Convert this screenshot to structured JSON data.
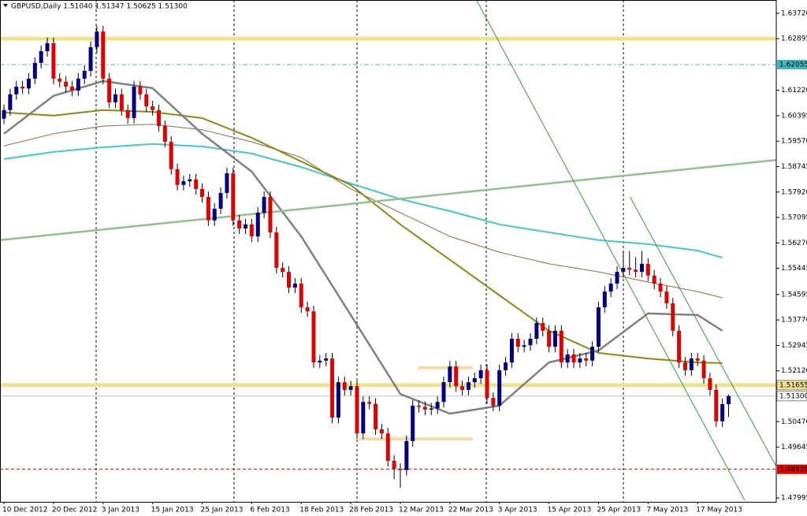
{
  "chart_data": {
    "type": "candlestick",
    "title": "GBPUSD,Daily  1.51040 1.51347 1.50625 1.51300",
    "categories": [
      "10 Dec 2012",
      null,
      null,
      null,
      null,
      null,
      null,
      null,
      "20 Dec 2012",
      null,
      null,
      null,
      null,
      null,
      null,
      null,
      "3 Jan 2013",
      null,
      null,
      null,
      null,
      null,
      null,
      null,
      "15 Jan 2013",
      null,
      null,
      null,
      null,
      null,
      null,
      null,
      "25 Jan 2013",
      null,
      null,
      null,
      null,
      null,
      null,
      null,
      "6 Feb 2013",
      null,
      null,
      null,
      null,
      null,
      null,
      null,
      "18 Feb 2013",
      null,
      null,
      null,
      null,
      null,
      null,
      null,
      "28 Feb 2013",
      null,
      null,
      null,
      null,
      null,
      null,
      null,
      "12 Mar 2013",
      null,
      null,
      null,
      null,
      null,
      null,
      null,
      "22 Mar 2013",
      null,
      null,
      null,
      null,
      null,
      null,
      null,
      "3 Apr 2013",
      null,
      null,
      null,
      null,
      null,
      null,
      null,
      "15 Apr 2013",
      null,
      null,
      null,
      null,
      null,
      null,
      null,
      "25 Apr 2013",
      null,
      null,
      null,
      null,
      null,
      null,
      null,
      "7 May 2013",
      null,
      null,
      null,
      null,
      null,
      null,
      null,
      "17 May 2013",
      null,
      null,
      null,
      null,
      null
    ],
    "open": [
      1.603,
      1.6058,
      1.6109,
      1.6134,
      1.6128,
      1.616,
      1.6211,
      1.6249,
      1.6275,
      1.616,
      1.615,
      1.6134,
      1.6121,
      1.616,
      1.6185,
      1.6262,
      1.6313,
      1.616,
      1.6083,
      1.6109,
      1.6058,
      1.6032,
      1.6134,
      1.6109,
      1.607,
      1.6058,
      1.6006,
      1.5955,
      1.5866,
      1.5815,
      1.5827,
      1.5833,
      1.5802,
      1.5776,
      1.57,
      1.5738,
      1.5789,
      1.5853,
      1.57,
      1.5674,
      1.5687,
      1.5648,
      1.5725,
      1.5776,
      1.5661,
      1.5546,
      1.5533,
      1.5482,
      1.5495,
      1.5418,
      1.5405,
      1.5239,
      1.5245,
      1.5252,
      1.506,
      1.5175,
      1.515,
      1.5162,
      1.5009,
      1.5111,
      1.5105,
      1.5022,
      1.5009,
      1.492,
      1.4894,
      1.489,
      1.4984,
      1.5099,
      1.5095,
      1.5086,
      1.509,
      1.5111,
      1.5175,
      1.5226,
      1.5162,
      1.515,
      1.5175,
      1.5188,
      1.5214,
      1.5124,
      1.5099,
      1.5214,
      1.5239,
      1.5316,
      1.529,
      1.5295,
      1.5316,
      1.5367,
      1.5342,
      1.529,
      1.5342,
      1.5239,
      1.5265,
      1.5239,
      1.5252,
      1.5245,
      1.529,
      1.5418,
      1.5469,
      1.5495,
      1.5533,
      1.5546,
      1.554,
      1.5533,
      1.5559,
      1.5521,
      1.5495,
      1.5469,
      1.5431,
      1.5342,
      1.5239,
      1.5214,
      1.5252,
      1.5245,
      1.5188,
      1.515,
      1.5048,
      1.5104
    ],
    "high": [
      1.6076,
      1.6127,
      1.6152,
      1.6152,
      1.6178,
      1.6229,
      1.6267,
      1.6293,
      1.6293,
      1.6178,
      1.6168,
      1.6152,
      1.6178,
      1.6203,
      1.628,
      1.6331,
      1.6331,
      1.6178,
      1.6127,
      1.6127,
      1.6076,
      1.6152,
      1.6152,
      1.6127,
      1.6088,
      1.6076,
      1.6024,
      1.5973,
      1.5884,
      1.5845,
      1.5851,
      1.5851,
      1.582,
      1.5794,
      1.5756,
      1.5807,
      1.5871,
      1.5871,
      1.5718,
      1.5705,
      1.5705,
      1.5743,
      1.5794,
      1.5794,
      1.5679,
      1.5564,
      1.5551,
      1.5513,
      1.5513,
      1.5436,
      1.5423,
      1.5263,
      1.527,
      1.527,
      1.5193,
      1.5193,
      1.518,
      1.518,
      1.5129,
      1.5129,
      1.5123,
      1.504,
      1.5027,
      1.4938,
      1.4912,
      1.5002,
      1.5117,
      1.5117,
      1.5113,
      1.5108,
      1.5129,
      1.5193,
      1.5244,
      1.5244,
      1.518,
      1.5193,
      1.5206,
      1.5232,
      1.5232,
      1.5142,
      1.5232,
      1.5257,
      1.5334,
      1.5334,
      1.5313,
      1.5334,
      1.5385,
      1.5385,
      1.536,
      1.536,
      1.536,
      1.5283,
      1.5283,
      1.527,
      1.527,
      1.5308,
      1.5436,
      1.5487,
      1.5513,
      1.5551,
      1.56,
      1.56,
      1.558,
      1.56,
      1.5577,
      1.5539,
      1.5513,
      1.5487,
      1.5449,
      1.536,
      1.5257,
      1.527,
      1.527,
      1.5263,
      1.5206,
      1.5168,
      1.5122,
      1.51347
    ],
    "low": [
      1.6012,
      1.604,
      1.6091,
      1.611,
      1.611,
      1.6142,
      1.6193,
      1.6231,
      1.6142,
      1.6132,
      1.6116,
      1.6103,
      1.6103,
      1.6142,
      1.6167,
      1.6244,
      1.6142,
      1.6065,
      1.6065,
      1.604,
      1.6014,
      1.6014,
      1.6091,
      1.6052,
      1.604,
      1.5988,
      1.5937,
      1.5848,
      1.5797,
      1.5797,
      1.5809,
      1.5784,
      1.5758,
      1.5682,
      1.5682,
      1.572,
      1.5771,
      1.5682,
      1.5656,
      1.5656,
      1.563,
      1.563,
      1.5707,
      1.5643,
      1.5528,
      1.5515,
      1.5464,
      1.5464,
      1.54,
      1.5387,
      1.5221,
      1.5221,
      1.5227,
      1.5042,
      1.5042,
      1.5132,
      1.5132,
      1.4991,
      1.4991,
      1.5087,
      1.5004,
      1.4991,
      1.4902,
      1.486,
      1.4832,
      1.4872,
      1.4966,
      1.5077,
      1.5068,
      1.5068,
      1.5072,
      1.5093,
      1.5157,
      1.5144,
      1.5132,
      1.5132,
      1.5157,
      1.517,
      1.5106,
      1.5081,
      1.5081,
      1.5196,
      1.5221,
      1.5272,
      1.5272,
      1.5277,
      1.5298,
      1.5324,
      1.5272,
      1.5272,
      1.5221,
      1.5221,
      1.5221,
      1.5221,
      1.5227,
      1.5227,
      1.5272,
      1.54,
      1.5451,
      1.5477,
      1.5515,
      1.5522,
      1.5515,
      1.5515,
      1.5503,
      1.5477,
      1.5451,
      1.5413,
      1.5324,
      1.5221,
      1.5196,
      1.5196,
      1.5227,
      1.517,
      1.5132,
      1.503,
      1.503,
      1.50625
    ],
    "close": [
      1.6058,
      1.6109,
      1.6134,
      1.6128,
      1.616,
      1.6211,
      1.6249,
      1.6275,
      1.616,
      1.615,
      1.6134,
      1.6121,
      1.616,
      1.6185,
      1.6262,
      1.6313,
      1.616,
      1.6083,
      1.6109,
      1.6058,
      1.6032,
      1.6134,
      1.6109,
      1.607,
      1.6058,
      1.6006,
      1.5955,
      1.5866,
      1.5815,
      1.5827,
      1.5833,
      1.5802,
      1.5776,
      1.57,
      1.5738,
      1.5789,
      1.5853,
      1.57,
      1.5674,
      1.5687,
      1.5648,
      1.5725,
      1.5776,
      1.5661,
      1.5546,
      1.5533,
      1.5482,
      1.5495,
      1.5418,
      1.5405,
      1.5239,
      1.5245,
      1.5252,
      1.506,
      1.5175,
      1.515,
      1.5162,
      1.5009,
      1.5111,
      1.5105,
      1.5022,
      1.5009,
      1.492,
      1.4894,
      1.489,
      1.4984,
      1.5099,
      1.5095,
      1.5086,
      1.509,
      1.5111,
      1.5175,
      1.5226,
      1.5162,
      1.515,
      1.5175,
      1.5188,
      1.5214,
      1.5124,
      1.5099,
      1.5214,
      1.5239,
      1.5316,
      1.529,
      1.5295,
      1.5316,
      1.5367,
      1.5342,
      1.529,
      1.5342,
      1.5239,
      1.5265,
      1.5239,
      1.5252,
      1.5245,
      1.529,
      1.5418,
      1.5469,
      1.5495,
      1.5533,
      1.5546,
      1.554,
      1.5533,
      1.5559,
      1.5521,
      1.5495,
      1.5469,
      1.5431,
      1.5342,
      1.5239,
      1.5214,
      1.5252,
      1.5245,
      1.5188,
      1.515,
      1.5048,
      1.5104,
      1.513
    ],
    "up_color": "#000080",
    "down_color": "#e00000",
    "xlim": [
      -0.64,
      124.7
    ],
    "ylim": [
      1.4787,
      1.6415
    ],
    "yticks": [
      {
        "value": 1.6372,
        "label": "1.63720"
      },
      {
        "value": 1.62895,
        "label": "1.62895"
      },
      {
        "value": 1.6122,
        "label": "1.61220"
      },
      {
        "value": 1.60395,
        "label": "1.60395"
      },
      {
        "value": 1.5957,
        "label": "1.59570"
      },
      {
        "value": 1.58745,
        "label": "1.58745"
      },
      {
        "value": 1.5792,
        "label": "1.57920"
      },
      {
        "value": 1.57095,
        "label": "1.57095"
      },
      {
        "value": 1.5627,
        "label": "1.56270"
      },
      {
        "value": 1.55445,
        "label": "1.55445"
      },
      {
        "value": 1.54595,
        "label": "1.54595"
      },
      {
        "value": 1.5377,
        "label": "1.53770"
      },
      {
        "value": 1.52945,
        "label": "1.52945"
      },
      {
        "value": 1.5212,
        "label": "1.52120"
      },
      {
        "value": 1.5047,
        "label": "1.50470"
      },
      {
        "value": 1.49645,
        "label": "1.49645"
      },
      {
        "value": 1.47995,
        "label": "1.47995"
      }
    ],
    "indicators": [
      {
        "color": "#40c8d0",
        "width": 2,
        "x": [
          0,
          8,
          16,
          24,
          32,
          40,
          48,
          56,
          64,
          72,
          80,
          88,
          96,
          104,
          112,
          116
        ],
        "values": [
          1.5899,
          1.5922,
          1.5937,
          1.5948,
          1.594,
          1.5917,
          1.5873,
          1.582,
          1.5769,
          1.573,
          1.5687,
          1.5661,
          1.5636,
          1.5623,
          1.5602,
          1.5579
        ]
      },
      {
        "color": "#8b6a4a",
        "width": 1,
        "x": [
          0,
          8,
          16,
          24,
          32,
          40,
          48,
          56,
          64,
          72,
          80,
          88,
          96,
          104,
          112,
          116
        ],
        "values": [
          1.5942,
          1.5981,
          1.6006,
          1.6012,
          1.5994,
          1.5955,
          1.5904,
          1.5802,
          1.5725,
          1.5648,
          1.5597,
          1.5559,
          1.5533,
          1.55,
          1.5469,
          1.5449
        ]
      },
      {
        "color": "#8a8a10",
        "width": 2,
        "x": [
          0,
          8,
          16,
          24,
          32,
          40,
          48,
          56,
          64,
          72,
          80,
          88,
          96,
          104,
          112,
          116
        ],
        "values": [
          1.605,
          1.604,
          1.6058,
          1.6052,
          1.6032,
          1.5968,
          1.5891,
          1.5815,
          1.5687,
          1.5572,
          1.5457,
          1.5342,
          1.527,
          1.5252,
          1.5239,
          1.5237
        ]
      },
      {
        "color": "#808080",
        "width": 2.5,
        "x": [
          0,
          8,
          16,
          24,
          32,
          40,
          48,
          56,
          64,
          72,
          80,
          88,
          96,
          104,
          112,
          116
        ],
        "values": [
          1.5981,
          1.6104,
          1.6152,
          1.6129,
          1.5981,
          1.5858,
          1.5648,
          1.5393,
          1.5137,
          1.5073,
          1.5099,
          1.5239,
          1.5278,
          1.5398,
          1.5393,
          1.5342
        ]
      }
    ],
    "trendlines": [
      {
        "color": "#90c090",
        "width": 2.5,
        "x": [
          -0.64,
          124.7
        ],
        "values": [
          1.5636,
          1.5896
        ]
      },
      {
        "color": "#3a9a3a",
        "width": 1,
        "x": [
          76.3,
          119.6
        ],
        "values": [
          1.6415,
          1.4792
        ]
      },
      {
        "color": "#3a9a3a",
        "width": 1,
        "x": [
          101.1,
          124.7
        ],
        "values": [
          1.5776,
          1.4902
        ]
      }
    ],
    "zones": [
      {
        "color": "#f8d8a0",
        "x": [
          66.8,
          75.7
        ],
        "value": 1.5222
      },
      {
        "color": "#f8d8a0",
        "x": [
          57.3,
          75.7
        ],
        "value": 1.4991
      }
    ],
    "levels": [
      {
        "value": 1.62895,
        "color": "#f0e08c",
        "width": 5,
        "style": "solid"
      },
      {
        "value": 1.62055,
        "label": "1.62055",
        "color": "#40b8c0",
        "width": 1,
        "style": "dashdot"
      },
      {
        "value": 1.51655,
        "label": "1.51655",
        "color": "#f0e08c",
        "width": 5,
        "style": "solid"
      },
      {
        "value": 1.513,
        "label": "1.51300",
        "color": "#c0c0c0",
        "width": 1,
        "style": "solid"
      },
      {
        "value": 1.48926,
        "label": "1.48926",
        "color": "#e00000",
        "width": 1,
        "style": "dashed"
      }
    ]
  }
}
